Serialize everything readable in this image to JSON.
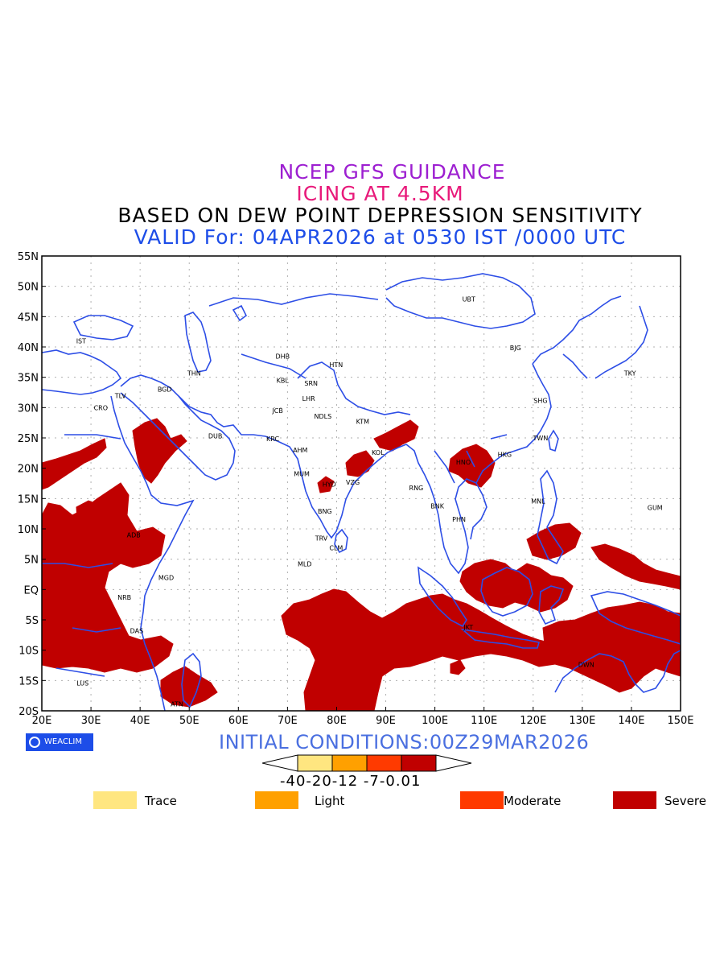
{
  "titles": {
    "line1": "NCEP GFS GUIDANCE",
    "line2": "ICING AT 4.5KM",
    "line3": "BASED ON DEW POINT DEPRESSION SENSITIVITY",
    "line4": "VALID For: 04APR2026 at 0530 IST /0000 UTC"
  },
  "map": {
    "lon_range": [
      20,
      150
    ],
    "lat_range": [
      -20,
      55
    ],
    "lat_labels": [
      "55N",
      "50N",
      "45N",
      "40N",
      "35N",
      "30N",
      "25N",
      "20N",
      "15N",
      "10N",
      "5N",
      "EQ",
      "5S",
      "10S",
      "15S",
      "20S"
    ],
    "lon_labels": [
      "20E",
      "30E",
      "40E",
      "50E",
      "60E",
      "70E",
      "80E",
      "90E",
      "100E",
      "110E",
      "120E",
      "130E",
      "140E",
      "150E"
    ],
    "cities": [
      {
        "code": "IST",
        "lon": 28,
        "lat": 41
      },
      {
        "code": "TLV",
        "lon": 36,
        "lat": 32
      },
      {
        "code": "CRO",
        "lon": 32,
        "lat": 30
      },
      {
        "code": "BGD",
        "lon": 45,
        "lat": 33
      },
      {
        "code": "THN",
        "lon": 51,
        "lat": 35.7
      },
      {
        "code": "DUB",
        "lon": 55.3,
        "lat": 25.3
      },
      {
        "code": "DHB",
        "lon": 69,
        "lat": 38.5
      },
      {
        "code": "KBL",
        "lon": 69,
        "lat": 34.5
      },
      {
        "code": "SRN",
        "lon": 74.8,
        "lat": 34
      },
      {
        "code": "HTN",
        "lon": 79.9,
        "lat": 37.1
      },
      {
        "code": "LHR",
        "lon": 74.3,
        "lat": 31.5
      },
      {
        "code": "JCB",
        "lon": 68,
        "lat": 29.5
      },
      {
        "code": "NDLS",
        "lon": 77.2,
        "lat": 28.6
      },
      {
        "code": "KRC",
        "lon": 67,
        "lat": 24.9
      },
      {
        "code": "AHM",
        "lon": 72.6,
        "lat": 23
      },
      {
        "code": "KTM",
        "lon": 85.3,
        "lat": 27.7
      },
      {
        "code": "KOL",
        "lon": 88.4,
        "lat": 22.6
      },
      {
        "code": "MUM",
        "lon": 72.9,
        "lat": 19.1
      },
      {
        "code": "HYD",
        "lon": 78.5,
        "lat": 17.4
      },
      {
        "code": "VZG",
        "lon": 83.3,
        "lat": 17.7
      },
      {
        "code": "BNG",
        "lon": 77.6,
        "lat": 12.9
      },
      {
        "code": "TRV",
        "lon": 76.9,
        "lat": 8.5
      },
      {
        "code": "CLM",
        "lon": 79.9,
        "lat": 6.9
      },
      {
        "code": "MLD",
        "lon": 73.5,
        "lat": 4.2
      },
      {
        "code": "RNG",
        "lon": 96.2,
        "lat": 16.8
      },
      {
        "code": "BNK",
        "lon": 100.5,
        "lat": 13.8
      },
      {
        "code": "PHN",
        "lon": 104.9,
        "lat": 11.6
      },
      {
        "code": "HNO",
        "lon": 105.8,
        "lat": 21
      },
      {
        "code": "HKG",
        "lon": 114.2,
        "lat": 22.3
      },
      {
        "code": "TWN",
        "lon": 121.5,
        "lat": 25
      },
      {
        "code": "SHG",
        "lon": 121.5,
        "lat": 31.2
      },
      {
        "code": "BJG",
        "lon": 116.4,
        "lat": 39.9
      },
      {
        "code": "UBT",
        "lon": 106.9,
        "lat": 47.9
      },
      {
        "code": "TKY",
        "lon": 139.7,
        "lat": 35.7
      },
      {
        "code": "MNL",
        "lon": 121,
        "lat": 14.6
      },
      {
        "code": "GUM",
        "lon": 144.8,
        "lat": 13.5
      },
      {
        "code": "JKT",
        "lon": 106.8,
        "lat": -6.2
      },
      {
        "code": "DWN",
        "lon": 130.8,
        "lat": -12.4
      },
      {
        "code": "ADB",
        "lon": 38.7,
        "lat": 9
      },
      {
        "code": "MGD",
        "lon": 45.3,
        "lat": 2
      },
      {
        "code": "NRB",
        "lon": 36.8,
        "lat": -1.3
      },
      {
        "code": "DAS",
        "lon": 39.3,
        "lat": -6.8
      },
      {
        "code": "LUS",
        "lon": 28.3,
        "lat": -15.4
      },
      {
        "code": "ATN",
        "lon": 47.5,
        "lat": -18.9
      }
    ]
  },
  "initial_conditions": "INITIAL CONDITIONS:00Z29MAR2026",
  "badge": "WEACLIM",
  "color_scale": {
    "values": "-40-20-12 -7-0.01",
    "colors": [
      "#ffe680",
      "#ffa000",
      "#ff3a00",
      "#c00000"
    ]
  },
  "legend": [
    {
      "label": "Trace",
      "color": "#ffe680"
    },
    {
      "label": "Light",
      "color": "#ffa000"
    },
    {
      "label": "Moderate",
      "color": "#ff3a00"
    },
    {
      "label": "Severe",
      "color": "#c00000"
    }
  ],
  "colors": {
    "coastline": "#2d4ee6",
    "grid": "#b0b0b0",
    "frame": "#000000"
  }
}
